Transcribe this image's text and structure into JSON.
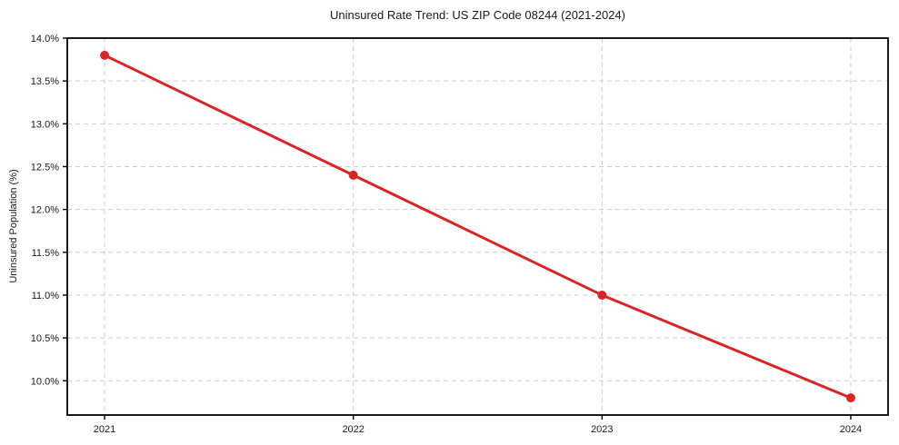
{
  "chart_data": {
    "type": "line",
    "title": "Uninsured Rate Trend: US ZIP Code 08244 (2021-2024)",
    "xlabel": "",
    "ylabel": "Uninsured Population (%)",
    "categories": [
      "2021",
      "2022",
      "2023",
      "2024"
    ],
    "values": [
      13.8,
      12.4,
      11.0,
      9.8
    ],
    "ylim": [
      9.6,
      14.0
    ],
    "yticks": [
      10.0,
      10.5,
      11.0,
      11.5,
      12.0,
      12.5,
      13.0,
      13.5,
      14.0
    ],
    "ytick_labels": [
      "10.0%",
      "10.5%",
      "11.0%",
      "11.5%",
      "12.0%",
      "12.5%",
      "13.0%",
      "13.5%",
      "14.0%"
    ],
    "grid": true,
    "grid_style": "dashed",
    "legend": false,
    "line_color": "#d62728",
    "marker": "circle",
    "grid_color": "#cccccc",
    "text_color": "#1a1a1a",
    "background": "#ffffff"
  }
}
